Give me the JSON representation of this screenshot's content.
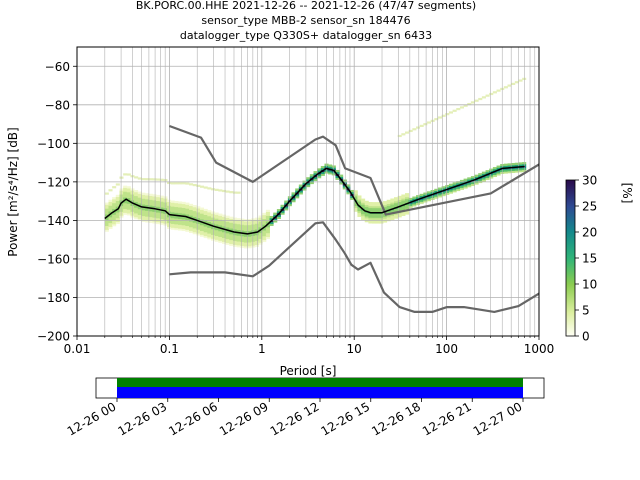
{
  "chart_data": [
    {
      "type": "heatmap",
      "title_lines": [
        "BK.PORC.00.HHE   2021-12-26 -- 2021-12-26  (47/47 segments)",
        "sensor_type MBB-2 sensor_sn 184476",
        "datalogger_type Q330S+ datalogger_sn 6433"
      ],
      "xlabel": "Period [s]",
      "ylabel": "Power [m²/s⁴/Hz] [dB]",
      "x_scale": "log",
      "xlim": [
        0.01,
        1000
      ],
      "ylim": [
        -200,
        -50
      ],
      "x_ticks": [
        {
          "value": 0.01,
          "label": "0.01"
        },
        {
          "value": 0.1,
          "label": "0.1"
        },
        {
          "value": 1,
          "label": "1"
        },
        {
          "value": 10,
          "label": "10"
        },
        {
          "value": 100,
          "label": "100"
        },
        {
          "value": 1000,
          "label": "1000"
        }
      ],
      "y_ticks": [
        -60,
        -80,
        -100,
        -120,
        -140,
        -160,
        -180,
        -200
      ],
      "grid": true,
      "mean_curve": [
        [
          0.02,
          -139
        ],
        [
          0.024,
          -136
        ],
        [
          0.028,
          -134
        ],
        [
          0.03,
          -131
        ],
        [
          0.034,
          -129
        ],
        [
          0.04,
          -131
        ],
        [
          0.05,
          -133
        ],
        [
          0.07,
          -134
        ],
        [
          0.09,
          -135
        ],
        [
          0.1,
          -137
        ],
        [
          0.15,
          -138
        ],
        [
          0.2,
          -140
        ],
        [
          0.3,
          -143
        ],
        [
          0.5,
          -146
        ],
        [
          0.7,
          -147
        ],
        [
          0.9,
          -146
        ],
        [
          1.1,
          -143
        ],
        [
          1.5,
          -137
        ],
        [
          2,
          -130
        ],
        [
          3,
          -121
        ],
        [
          4,
          -116
        ],
        [
          5,
          -113
        ],
        [
          6,
          -114
        ],
        [
          7,
          -118
        ],
        [
          9,
          -125
        ],
        [
          11,
          -132
        ],
        [
          13,
          -135
        ],
        [
          15,
          -136
        ],
        [
          20,
          -136
        ],
        [
          30,
          -133
        ],
        [
          50,
          -129
        ],
        [
          100,
          -124
        ],
        [
          200,
          -119
        ],
        [
          400,
          -113
        ],
        [
          700,
          -112
        ]
      ],
      "noise_model_high": [
        [
          0.1,
          -91
        ],
        [
          0.22,
          -97
        ],
        [
          0.32,
          -110
        ],
        [
          0.8,
          -120
        ],
        [
          3.8,
          -98
        ],
        [
          4.6,
          -96.5
        ],
        [
          6.3,
          -101
        ],
        [
          8,
          -113
        ],
        [
          15,
          -118
        ],
        [
          22,
          -137
        ],
        [
          300,
          -126
        ],
        [
          1000,
          -111
        ]
      ],
      "noise_model_low": [
        [
          0.1,
          -168
        ],
        [
          0.17,
          -167
        ],
        [
          0.4,
          -167
        ],
        [
          0.8,
          -169
        ],
        [
          1.2,
          -163.5
        ],
        [
          3.8,
          -141.5
        ],
        [
          4.6,
          -141
        ],
        [
          6.3,
          -150
        ],
        [
          7.9,
          -157
        ],
        [
          9.3,
          -163
        ],
        [
          11,
          -165.5
        ],
        [
          15,
          -162
        ],
        [
          21,
          -177.5
        ],
        [
          31,
          -185
        ],
        [
          45,
          -187.5
        ],
        [
          70,
          -187.5
        ],
        [
          101,
          -185
        ],
        [
          154,
          -185
        ],
        [
          328,
          -187.5
        ],
        [
          600,
          -184.5
        ],
        [
          1000,
          -178
        ]
      ],
      "colorbar": {
        "label": "[%]",
        "range": [
          0,
          30
        ],
        "ticks": [
          0,
          5,
          10,
          15,
          20,
          25,
          30
        ]
      }
    },
    {
      "type": "timeline",
      "x_ticks": [
        "12-26 00",
        "12-26 03",
        "12-26 06",
        "12-26 09",
        "12-26 12",
        "12-26 15",
        "12-26 18",
        "12-26 21",
        "12-27 00"
      ],
      "bars": [
        {
          "color": "#008000",
          "start": "12-26 00",
          "end": "12-27 00"
        },
        {
          "color": "#0000ff",
          "start": "12-26 00",
          "end": "12-27 00"
        }
      ]
    }
  ],
  "colors": {
    "mean_curve": "#000000",
    "noise_models": "#666666",
    "grid": "#b0b0b0"
  }
}
